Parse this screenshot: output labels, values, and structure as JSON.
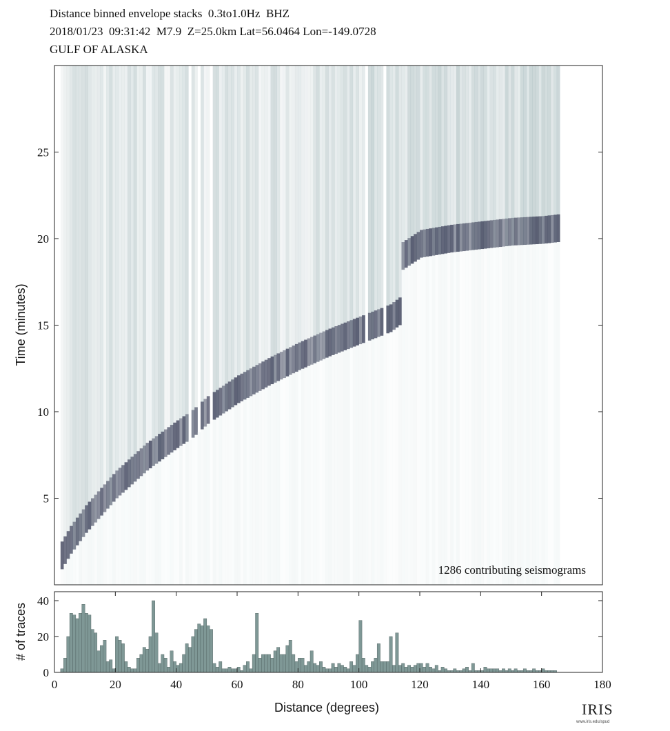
{
  "header": {
    "line1": "Distance binned envelope stacks  0.3to1.0Hz  BHZ",
    "line2": "2018/01/23  09:31:42  M7.9  Z=25.0km Lat=56.0464 Lon=-149.0728",
    "line3": "GULF OF ALASKA"
  },
  "chart_data": [
    {
      "type": "heatmap",
      "title": "Distance binned envelope stacks 0.3to1.0Hz BHZ",
      "xlabel": "Distance (degrees)",
      "ylabel": "Time (minutes)",
      "xlim": [
        0,
        180
      ],
      "ylim": [
        0,
        30
      ],
      "yticks": [
        5,
        10,
        15,
        20,
        25
      ],
      "annotation": "1286 contributing seismograms",
      "data_extent_deg": [
        2,
        165
      ],
      "first_arrival_curve": {
        "distance_deg": [
          2,
          5,
          10,
          20,
          30,
          40,
          45,
          50,
          60,
          70,
          80,
          90,
          100,
          110,
          113,
          114,
          120,
          130,
          140,
          150,
          160,
          165
        ],
        "time_min": [
          0.9,
          1.8,
          3.0,
          5.0,
          6.6,
          7.9,
          8.5,
          9.3,
          10.5,
          11.5,
          12.4,
          13.2,
          13.9,
          14.6,
          15.0,
          18.2,
          18.9,
          19.2,
          19.4,
          19.6,
          19.7,
          19.8
        ]
      },
      "gap_bins_deg": [
        44,
        47,
        51,
        102,
        108
      ]
    },
    {
      "type": "bar",
      "xlabel": "Distance (degrees)",
      "ylabel": "# of traces",
      "xlim": [
        0,
        180
      ],
      "ylim": [
        0,
        45
      ],
      "xticks": [
        0,
        20,
        40,
        60,
        80,
        100,
        120,
        140,
        160,
        180
      ],
      "yticks": [
        0,
        20,
        40
      ],
      "bin_width_deg": 1,
      "x": [
        2,
        3,
        4,
        5,
        6,
        7,
        8,
        9,
        10,
        11,
        12,
        13,
        14,
        15,
        16,
        17,
        18,
        19,
        20,
        21,
        22,
        23,
        24,
        25,
        26,
        27,
        28,
        29,
        30,
        31,
        32,
        33,
        34,
        35,
        36,
        37,
        38,
        39,
        40,
        41,
        42,
        43,
        44,
        45,
        46,
        47,
        48,
        49,
        50,
        51,
        52,
        53,
        54,
        55,
        56,
        57,
        58,
        59,
        60,
        61,
        62,
        63,
        64,
        65,
        66,
        67,
        68,
        69,
        70,
        71,
        72,
        73,
        74,
        75,
        76,
        77,
        78,
        79,
        80,
        81,
        82,
        83,
        84,
        85,
        86,
        87,
        88,
        89,
        90,
        91,
        92,
        93,
        94,
        95,
        96,
        97,
        98,
        99,
        100,
        101,
        102,
        103,
        104,
        105,
        106,
        107,
        108,
        109,
        110,
        111,
        112,
        113,
        114,
        115,
        116,
        117,
        118,
        119,
        120,
        121,
        122,
        123,
        124,
        125,
        126,
        127,
        128,
        129,
        130,
        131,
        132,
        133,
        134,
        135,
        136,
        137,
        138,
        139,
        140,
        141,
        142,
        143,
        144,
        145,
        146,
        147,
        148,
        149,
        150,
        151,
        152,
        153,
        154,
        155,
        156,
        157,
        158,
        159,
        160,
        161,
        162,
        163,
        164
      ],
      "values": [
        2,
        8,
        20,
        33,
        32,
        30,
        33,
        38,
        33,
        32,
        24,
        22,
        12,
        15,
        18,
        6,
        7,
        2,
        20,
        18,
        16,
        6,
        3,
        2,
        2,
        8,
        10,
        14,
        13,
        20,
        40,
        22,
        5,
        10,
        8,
        3,
        12,
        6,
        4,
        5,
        10,
        16,
        14,
        20,
        24,
        27,
        26,
        30,
        26,
        24,
        5,
        3,
        6,
        2,
        2,
        3,
        2,
        2,
        3,
        1,
        4,
        6,
        2,
        10,
        33,
        8,
        10,
        10,
        10,
        8,
        12,
        14,
        10,
        10,
        15,
        18,
        10,
        6,
        8,
        8,
        4,
        6,
        12,
        5,
        4,
        6,
        3,
        2,
        2,
        5,
        3,
        5,
        4,
        3,
        2,
        6,
        4,
        10,
        29,
        8,
        4,
        3,
        6,
        8,
        16,
        6,
        6,
        6,
        20,
        4,
        22,
        4,
        5,
        3,
        4,
        3,
        4,
        5,
        5,
        3,
        5,
        3,
        2,
        4,
        1,
        3,
        2,
        1,
        1,
        2,
        1,
        1,
        2,
        3,
        1,
        5,
        1,
        1,
        1,
        3,
        2,
        2,
        2,
        2,
        1,
        2,
        1,
        2,
        1,
        2,
        1,
        1,
        2,
        1,
        1,
        2,
        1,
        1,
        2,
        1,
        1,
        1,
        1
      ]
    }
  ],
  "footer": {
    "logo": "IRIS",
    "logo_url": "www.iris.edu/spud"
  },
  "colors": {
    "bar_fill": "#7f9896",
    "bar_stroke": "#4d5e5c",
    "heat_light": "#eaf1f1",
    "heat_mid": "#8fa8ab",
    "heat_dark": "#3b3f58"
  }
}
